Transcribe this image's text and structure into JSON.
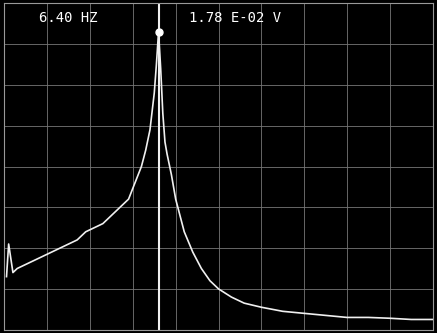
{
  "chart_data": {
    "type": "line",
    "annotations": [
      "6.40 HZ",
      "1.78 E-02 V"
    ],
    "x": [
      0.05,
      0.1,
      0.2,
      0.3,
      0.5,
      0.7,
      0.9,
      1.1,
      1.3,
      1.5,
      1.7,
      1.9,
      2.1,
      2.3,
      2.5,
      2.7,
      2.9,
      3.05,
      3.2,
      3.3,
      3.4,
      3.5,
      3.55,
      3.6,
      3.65,
      3.7,
      3.75,
      3.8,
      3.9,
      4.0,
      4.1,
      4.2,
      4.4,
      4.6,
      4.8,
      5.0,
      5.3,
      5.6,
      6.0,
      6.5,
      7.0,
      7.5,
      8.0,
      8.5,
      9.0,
      9.5,
      10.0
    ],
    "values": [
      1.3,
      2.1,
      1.4,
      1.5,
      1.6,
      1.7,
      1.8,
      1.9,
      2.0,
      2.1,
      2.2,
      2.4,
      2.5,
      2.6,
      2.8,
      3.0,
      3.2,
      3.6,
      4.0,
      4.4,
      4.9,
      5.8,
      6.5,
      7.3,
      6.4,
      5.3,
      4.6,
      4.3,
      3.8,
      3.2,
      2.8,
      2.4,
      1.9,
      1.5,
      1.2,
      1.0,
      0.8,
      0.65,
      0.55,
      0.45,
      0.4,
      0.35,
      0.3,
      0.3,
      0.28,
      0.25,
      0.25
    ],
    "color": "#f0f0f0",
    "xlim": [
      0,
      10
    ],
    "xticks": [
      0,
      1,
      2,
      3,
      4,
      5,
      6,
      7,
      8,
      9,
      10
    ],
    "ylim": [
      0,
      8
    ],
    "yticks": [
      0,
      1,
      2,
      3,
      4,
      5,
      6,
      7,
      8
    ],
    "grid": true,
    "tick_labels": false
  }
}
